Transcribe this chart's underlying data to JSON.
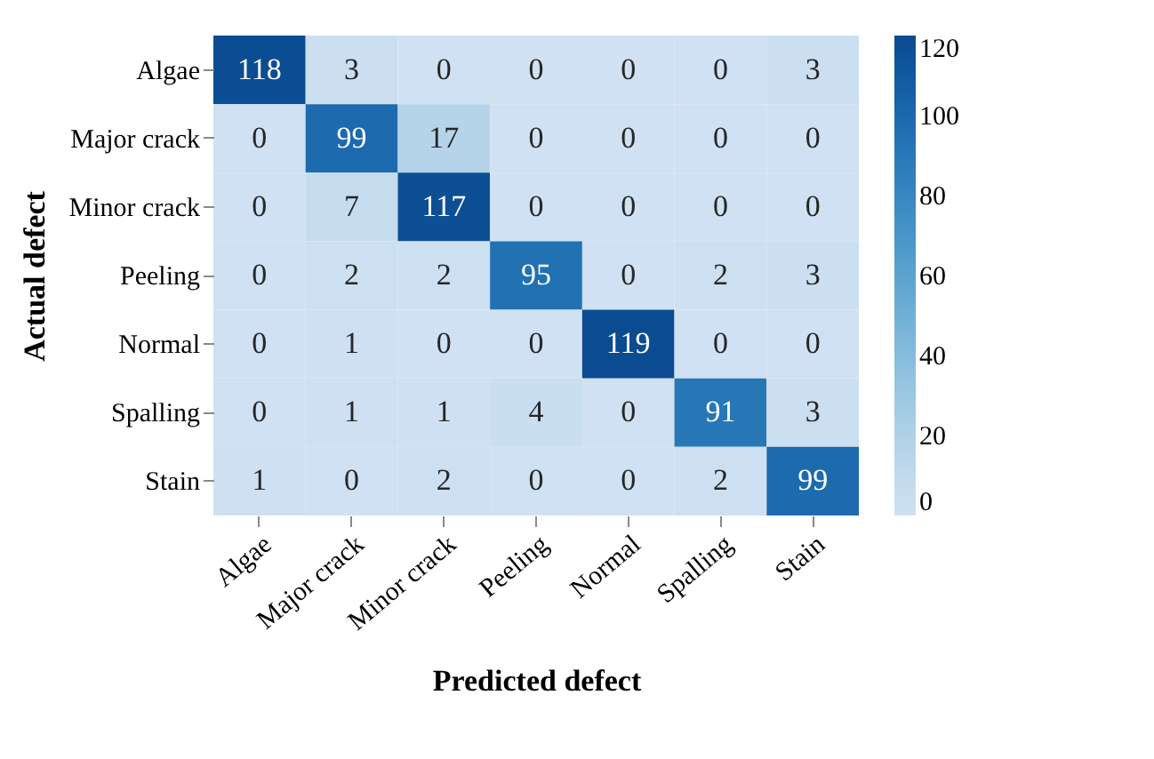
{
  "chart_data": {
    "type": "heatmap",
    "xlabel": "Predicted defect",
    "ylabel": "Actual defect",
    "categories": [
      "Algae",
      "Major crack",
      "Minor crack",
      "Peeling",
      "Normal",
      "Spalling",
      "Stain"
    ],
    "y_categories": [
      "Algae",
      "Major crack",
      "Minor crack",
      "Peeling",
      "Normal",
      "Spalling",
      "Stain"
    ],
    "cells": [
      [
        118,
        3,
        0,
        0,
        0,
        0,
        3
      ],
      [
        0,
        99,
        17,
        0,
        0,
        0,
        0
      ],
      [
        0,
        7,
        117,
        0,
        0,
        0,
        0
      ],
      [
        0,
        2,
        2,
        95,
        0,
        2,
        3
      ],
      [
        0,
        1,
        0,
        0,
        119,
        0,
        0
      ],
      [
        0,
        1,
        1,
        4,
        0,
        91,
        3
      ],
      [
        1,
        0,
        2,
        0,
        0,
        2,
        99
      ]
    ],
    "data_labels": true,
    "clim": [
      0,
      120
    ],
    "cticks": [
      0,
      20,
      40,
      60,
      80,
      100,
      120
    ]
  }
}
